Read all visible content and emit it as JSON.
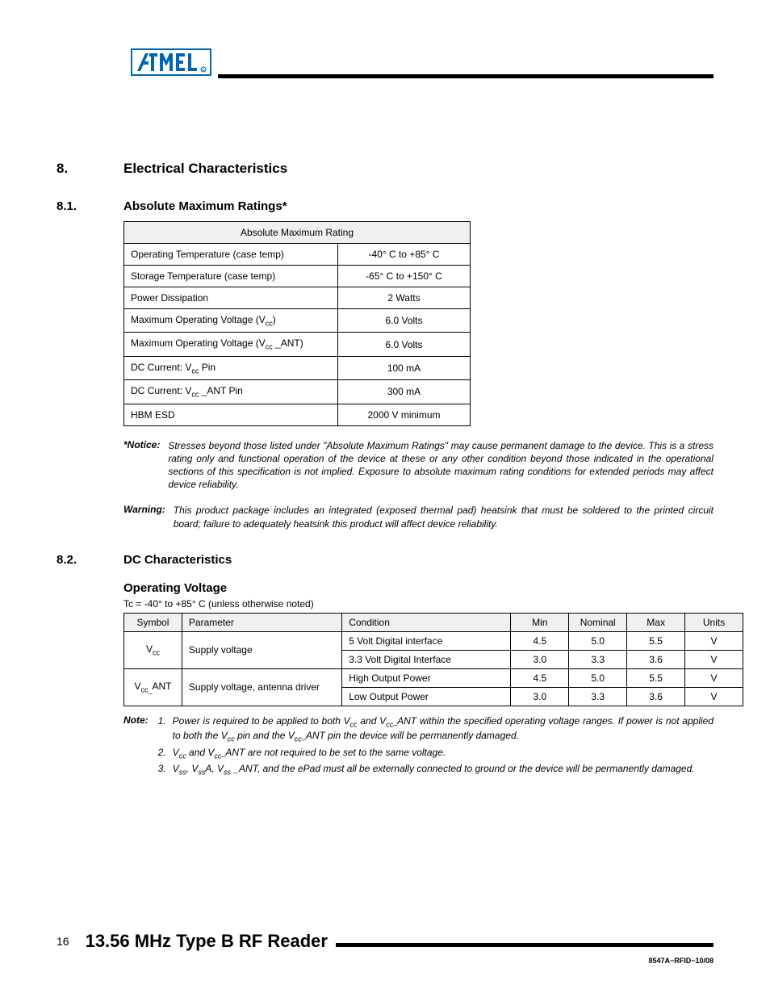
{
  "section": {
    "num": "8.",
    "title": "Electrical Characteristics"
  },
  "sub1": {
    "num": "8.1.",
    "title": "Absolute Maximum Ratings*"
  },
  "table1": {
    "header": "Absolute Maximum Rating",
    "rows": [
      {
        "param": "Operating Temperature (case temp)",
        "val": "-40° C to +85° C"
      },
      {
        "param": "Storage Temperature (case temp)",
        "val": "-65° C to +150° C"
      },
      {
        "param": "Power Dissipation",
        "val": "2 Watts"
      },
      {
        "param": "Maximum Operating Voltage (V<sub class='sub'>cc</sub>)",
        "val": "6.0 Volts"
      },
      {
        "param": "Maximum Operating Voltage (V<sub class='sub'>cc</sub> _ANT)",
        "val": "6.0 Volts"
      },
      {
        "param": "DC Current: V<sub class='sub'>cc</sub> Pin",
        "val": "100 mA"
      },
      {
        "param": "DC Current: V<sub class='sub'>cc</sub> _ANT Pin",
        "val": "300 mA"
      },
      {
        "param": "HBM ESD",
        "val": "2000 V minimum"
      }
    ]
  },
  "notice": {
    "label": "*Notice:",
    "text": "Stresses beyond those listed under \"Absolute Maximum Ratings\" may cause permanent damage to the device. This is a stress rating only and functional operation of the device at these or any other condition beyond those indicated in the operational sections of this specification is not implied. Exposure to absolute maximum rating conditions for extended periods may affect device reliability."
  },
  "warning": {
    "label": "Warning:",
    "text": "This product package includes an integrated (exposed thermal pad) heatsink that must be soldered to the printed circuit board; failure to adequately heatsink this product will affect device reliability."
  },
  "sub2": {
    "num": "8.2.",
    "title": "DC Characteristics"
  },
  "opvolt": {
    "heading": "Operating Voltage",
    "tc": "Tc = -40° to +85° C  (unless otherwise noted)"
  },
  "table2": {
    "headers": [
      "Symbol",
      "Parameter",
      "Condition",
      "Min",
      "Nominal",
      "Max",
      "Units"
    ],
    "rows": [
      {
        "sym": "V<sub class='sub'>cc</sub>",
        "param": "Supply voltage",
        "cond": "5 Volt Digital interface",
        "min": "4.5",
        "nom": "5.0",
        "max": "5.5",
        "unit": "V",
        "symspan": 2,
        "paramspan": 2
      },
      {
        "cond": "3.3 Volt Digital Interface",
        "min": "3.0",
        "nom": "3.3",
        "max": "3.6",
        "unit": "V"
      },
      {
        "sym": "V<sub class='sub'>cc_</sub>ANT",
        "param": "Supply voltage, antenna driver",
        "cond": "High Output Power",
        "min": "4.5",
        "nom": "5.0",
        "max": "5.5",
        "unit": "V",
        "symspan": 2,
        "paramspan": 2
      },
      {
        "cond": "Low Output Power",
        "min": "3.0",
        "nom": "3.3",
        "max": "3.6",
        "unit": "V"
      }
    ]
  },
  "note": {
    "label": "Note:",
    "items": [
      "Power is required to be applied to both V<sub class='sub'>cc</sub> and V<sub class='sub'>cc–</sub>ANT within the specified operating voltage ranges. If power is not applied to both the V<sub class='sub'>cc</sub> pin and the V<sub class='sub'>cc–</sub>ANT pin the device will be permanently damaged.",
      "V<sub class='sub'>cc</sub> and V<sub class='sub'>cc–</sub>ANT are not required to be set to the same voltage.",
      "V<sub class='sub'>ss</sub>, V<sub class='sub'>ss</sub>A, V<sub class='sub'>ss</sub> _ANT, and the ePad must all be externally connected to ground or the device will be permanently damaged."
    ]
  },
  "footer": {
    "page": "16",
    "title": "13.56 MHz Type B RF Reader",
    "docid": "8547A−RFID−10/08"
  },
  "colors": {
    "text": "#000000",
    "bg": "#ffffff",
    "header_bg": "#f0f0f0",
    "logo": "#0066b3"
  }
}
